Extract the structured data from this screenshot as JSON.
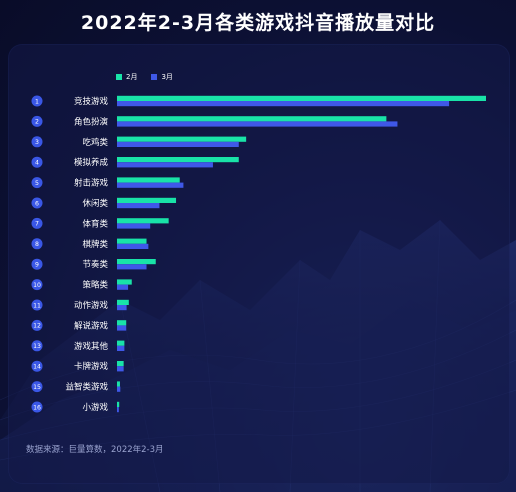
{
  "title": "2022年2-3月各类游戏抖音播放量对比",
  "legend": [
    {
      "label": "2月",
      "color": "#19e3a8"
    },
    {
      "label": "3月",
      "color": "#3f58e8"
    }
  ],
  "source": "数据来源：巨量算数，2022年2-3月",
  "chart_data": {
    "type": "bar",
    "orientation": "horizontal",
    "title": "2022年2-3月各类游戏抖音播放量对比",
    "categories": [
      "竞技游戏",
      "角色扮演",
      "吃鸡类",
      "模拟养成",
      "射击游戏",
      "休闲类",
      "体育类",
      "棋牌类",
      "节奏类",
      "策略类",
      "动作游戏",
      "解说游戏",
      "游戏其他",
      "卡牌游戏",
      "益智类游戏",
      "小游戏"
    ],
    "rank_labels": [
      "1",
      "2",
      "3",
      "4",
      "5",
      "6",
      "7",
      "8",
      "9",
      "10",
      "11",
      "12",
      "13",
      "14",
      "15",
      "16"
    ],
    "series": [
      {
        "name": "2月",
        "color": "#19e3a8",
        "values": [
          100,
          73,
          35,
          33,
          17,
          16,
          14,
          8,
          10.5,
          4,
          3.2,
          2.5,
          2,
          1.8,
          0.8,
          0.6
        ]
      },
      {
        "name": "3月",
        "color": "#3f58e8",
        "values": [
          90,
          76,
          33,
          26,
          18,
          11.5,
          9,
          8.5,
          8,
          3,
          2.6,
          2.5,
          2,
          1.8,
          0.9,
          0.5
        ]
      }
    ],
    "xlim": [
      0,
      100
    ],
    "grid": false,
    "legend_position": "top-left"
  }
}
